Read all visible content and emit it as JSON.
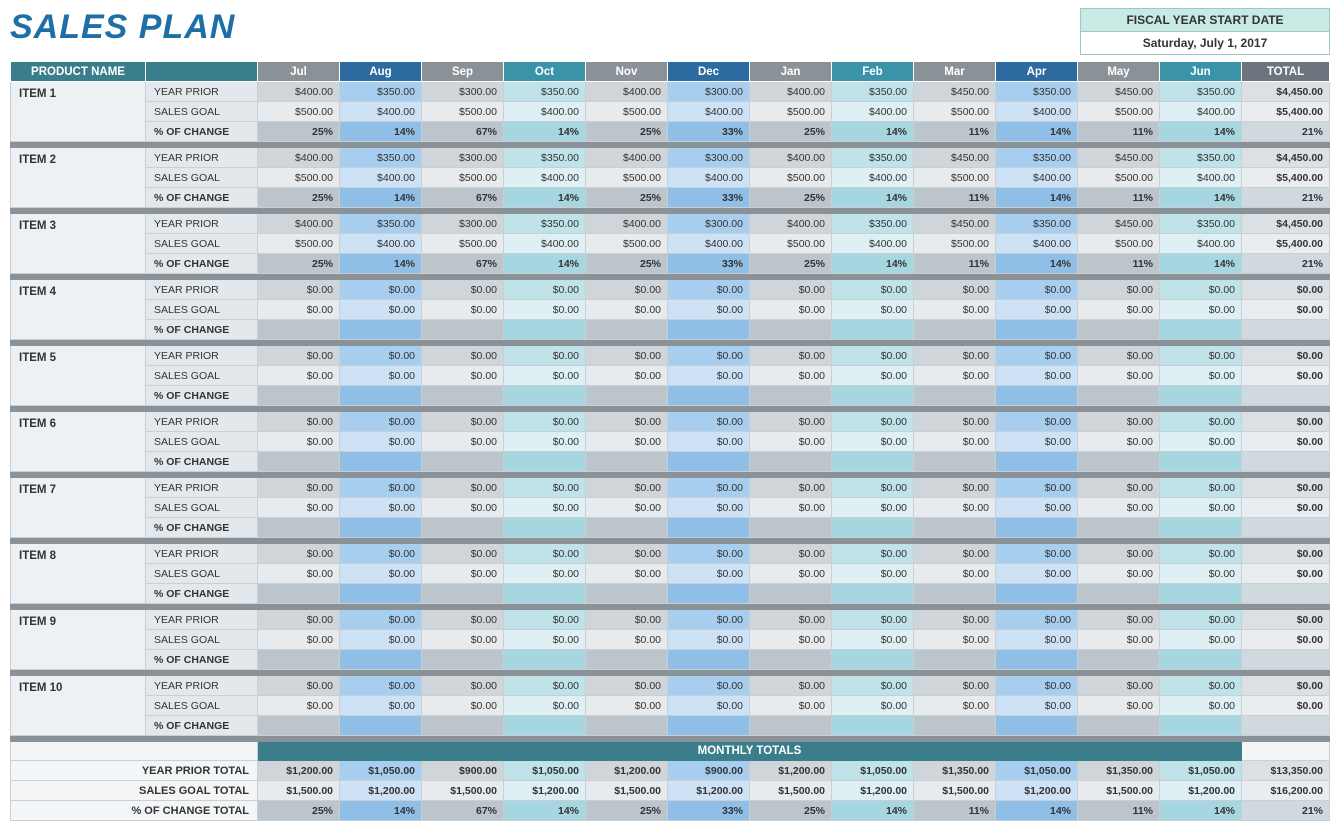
{
  "title": "SALES PLAN",
  "fy": {
    "label": "FISCAL YEAR START DATE",
    "date": "Saturday, July 1, 2017"
  },
  "colors": {
    "prod_header": "#3a7e8c",
    "total_header": "#6c757d",
    "sep_row": "#8a9197",
    "months": [
      {
        "name": "Jul",
        "hdr": "#8a9197",
        "prior": "#d0d5da",
        "goal": "#e7ebee",
        "chg": "#bcc5cb"
      },
      {
        "name": "Aug",
        "hdr": "#2c6aa0",
        "prior": "#a7cdef",
        "goal": "#cde2f5",
        "chg": "#8fbfe6"
      },
      {
        "name": "Sep",
        "hdr": "#8a9197",
        "prior": "#d0d5da",
        "goal": "#e7ebee",
        "chg": "#bcc5cb"
      },
      {
        "name": "Oct",
        "hdr": "#3a93a6",
        "prior": "#c0e3ea",
        "goal": "#def0f3",
        "chg": "#a6d7e0"
      },
      {
        "name": "Nov",
        "hdr": "#8a9197",
        "prior": "#d0d5da",
        "goal": "#e7ebee",
        "chg": "#bcc5cb"
      },
      {
        "name": "Dec",
        "hdr": "#2c6aa0",
        "prior": "#a7cdef",
        "goal": "#cde2f5",
        "chg": "#8fbfe6"
      },
      {
        "name": "Jan",
        "hdr": "#8a9197",
        "prior": "#d0d5da",
        "goal": "#e7ebee",
        "chg": "#bcc5cb"
      },
      {
        "name": "Feb",
        "hdr": "#3a93a6",
        "prior": "#c0e3ea",
        "goal": "#def0f3",
        "chg": "#a6d7e0"
      },
      {
        "name": "Mar",
        "hdr": "#8a9197",
        "prior": "#d0d5da",
        "goal": "#e7ebee",
        "chg": "#bcc5cb"
      },
      {
        "name": "Apr",
        "hdr": "#2c6aa0",
        "prior": "#a7cdef",
        "goal": "#cde2f5",
        "chg": "#8fbfe6"
      },
      {
        "name": "May",
        "hdr": "#8a9197",
        "prior": "#d0d5da",
        "goal": "#e7ebee",
        "chg": "#bcc5cb"
      },
      {
        "name": "Jun",
        "hdr": "#3a93a6",
        "prior": "#c0e3ea",
        "goal": "#def0f3",
        "chg": "#a6d7e0"
      }
    ]
  },
  "headers": {
    "product": "PRODUCT NAME",
    "total": "TOTAL"
  },
  "metric_labels": {
    "prior": "YEAR PRIOR",
    "goal": "SALES GOAL",
    "change": "% OF CHANGE"
  },
  "items": [
    {
      "name": "ITEM 1",
      "prior": [
        "$400.00",
        "$350.00",
        "$300.00",
        "$350.00",
        "$400.00",
        "$300.00",
        "$400.00",
        "$350.00",
        "$450.00",
        "$350.00",
        "$450.00",
        "$350.00"
      ],
      "prior_total": "$4,450.00",
      "goal": [
        "$500.00",
        "$400.00",
        "$500.00",
        "$400.00",
        "$500.00",
        "$400.00",
        "$500.00",
        "$400.00",
        "$500.00",
        "$400.00",
        "$500.00",
        "$400.00"
      ],
      "goal_total": "$5,400.00",
      "change": [
        "25%",
        "14%",
        "67%",
        "14%",
        "25%",
        "33%",
        "25%",
        "14%",
        "11%",
        "14%",
        "11%",
        "14%"
      ],
      "change_total": "21%"
    },
    {
      "name": "ITEM 2",
      "prior": [
        "$400.00",
        "$350.00",
        "$300.00",
        "$350.00",
        "$400.00",
        "$300.00",
        "$400.00",
        "$350.00",
        "$450.00",
        "$350.00",
        "$450.00",
        "$350.00"
      ],
      "prior_total": "$4,450.00",
      "goal": [
        "$500.00",
        "$400.00",
        "$500.00",
        "$400.00",
        "$500.00",
        "$400.00",
        "$500.00",
        "$400.00",
        "$500.00",
        "$400.00",
        "$500.00",
        "$400.00"
      ],
      "goal_total": "$5,400.00",
      "change": [
        "25%",
        "14%",
        "67%",
        "14%",
        "25%",
        "33%",
        "25%",
        "14%",
        "11%",
        "14%",
        "11%",
        "14%"
      ],
      "change_total": "21%"
    },
    {
      "name": "ITEM 3",
      "prior": [
        "$400.00",
        "$350.00",
        "$300.00",
        "$350.00",
        "$400.00",
        "$300.00",
        "$400.00",
        "$350.00",
        "$450.00",
        "$350.00",
        "$450.00",
        "$350.00"
      ],
      "prior_total": "$4,450.00",
      "goal": [
        "$500.00",
        "$400.00",
        "$500.00",
        "$400.00",
        "$500.00",
        "$400.00",
        "$500.00",
        "$400.00",
        "$500.00",
        "$400.00",
        "$500.00",
        "$400.00"
      ],
      "goal_total": "$5,400.00",
      "change": [
        "25%",
        "14%",
        "67%",
        "14%",
        "25%",
        "33%",
        "25%",
        "14%",
        "11%",
        "14%",
        "11%",
        "14%"
      ],
      "change_total": "21%"
    },
    {
      "name": "ITEM 4",
      "prior": [
        "$0.00",
        "$0.00",
        "$0.00",
        "$0.00",
        "$0.00",
        "$0.00",
        "$0.00",
        "$0.00",
        "$0.00",
        "$0.00",
        "$0.00",
        "$0.00"
      ],
      "prior_total": "$0.00",
      "goal": [
        "$0.00",
        "$0.00",
        "$0.00",
        "$0.00",
        "$0.00",
        "$0.00",
        "$0.00",
        "$0.00",
        "$0.00",
        "$0.00",
        "$0.00",
        "$0.00"
      ],
      "goal_total": "$0.00",
      "change": [
        "",
        "",
        "",
        "",
        "",
        "",
        "",
        "",
        "",
        "",
        "",
        ""
      ],
      "change_total": ""
    },
    {
      "name": "ITEM 5",
      "prior": [
        "$0.00",
        "$0.00",
        "$0.00",
        "$0.00",
        "$0.00",
        "$0.00",
        "$0.00",
        "$0.00",
        "$0.00",
        "$0.00",
        "$0.00",
        "$0.00"
      ],
      "prior_total": "$0.00",
      "goal": [
        "$0.00",
        "$0.00",
        "$0.00",
        "$0.00",
        "$0.00",
        "$0.00",
        "$0.00",
        "$0.00",
        "$0.00",
        "$0.00",
        "$0.00",
        "$0.00"
      ],
      "goal_total": "$0.00",
      "change": [
        "",
        "",
        "",
        "",
        "",
        "",
        "",
        "",
        "",
        "",
        "",
        ""
      ],
      "change_total": ""
    },
    {
      "name": "ITEM 6",
      "prior": [
        "$0.00",
        "$0.00",
        "$0.00",
        "$0.00",
        "$0.00",
        "$0.00",
        "$0.00",
        "$0.00",
        "$0.00",
        "$0.00",
        "$0.00",
        "$0.00"
      ],
      "prior_total": "$0.00",
      "goal": [
        "$0.00",
        "$0.00",
        "$0.00",
        "$0.00",
        "$0.00",
        "$0.00",
        "$0.00",
        "$0.00",
        "$0.00",
        "$0.00",
        "$0.00",
        "$0.00"
      ],
      "goal_total": "$0.00",
      "change": [
        "",
        "",
        "",
        "",
        "",
        "",
        "",
        "",
        "",
        "",
        "",
        ""
      ],
      "change_total": ""
    },
    {
      "name": "ITEM 7",
      "prior": [
        "$0.00",
        "$0.00",
        "$0.00",
        "$0.00",
        "$0.00",
        "$0.00",
        "$0.00",
        "$0.00",
        "$0.00",
        "$0.00",
        "$0.00",
        "$0.00"
      ],
      "prior_total": "$0.00",
      "goal": [
        "$0.00",
        "$0.00",
        "$0.00",
        "$0.00",
        "$0.00",
        "$0.00",
        "$0.00",
        "$0.00",
        "$0.00",
        "$0.00",
        "$0.00",
        "$0.00"
      ],
      "goal_total": "$0.00",
      "change": [
        "",
        "",
        "",
        "",
        "",
        "",
        "",
        "",
        "",
        "",
        "",
        ""
      ],
      "change_total": ""
    },
    {
      "name": "ITEM 8",
      "prior": [
        "$0.00",
        "$0.00",
        "$0.00",
        "$0.00",
        "$0.00",
        "$0.00",
        "$0.00",
        "$0.00",
        "$0.00",
        "$0.00",
        "$0.00",
        "$0.00"
      ],
      "prior_total": "$0.00",
      "goal": [
        "$0.00",
        "$0.00",
        "$0.00",
        "$0.00",
        "$0.00",
        "$0.00",
        "$0.00",
        "$0.00",
        "$0.00",
        "$0.00",
        "$0.00",
        "$0.00"
      ],
      "goal_total": "$0.00",
      "change": [
        "",
        "",
        "",
        "",
        "",
        "",
        "",
        "",
        "",
        "",
        "",
        ""
      ],
      "change_total": ""
    },
    {
      "name": "ITEM 9",
      "prior": [
        "$0.00",
        "$0.00",
        "$0.00",
        "$0.00",
        "$0.00",
        "$0.00",
        "$0.00",
        "$0.00",
        "$0.00",
        "$0.00",
        "$0.00",
        "$0.00"
      ],
      "prior_total": "$0.00",
      "goal": [
        "$0.00",
        "$0.00",
        "$0.00",
        "$0.00",
        "$0.00",
        "$0.00",
        "$0.00",
        "$0.00",
        "$0.00",
        "$0.00",
        "$0.00",
        "$0.00"
      ],
      "goal_total": "$0.00",
      "change": [
        "",
        "",
        "",
        "",
        "",
        "",
        "",
        "",
        "",
        "",
        "",
        ""
      ],
      "change_total": ""
    },
    {
      "name": "ITEM 10",
      "prior": [
        "$0.00",
        "$0.00",
        "$0.00",
        "$0.00",
        "$0.00",
        "$0.00",
        "$0.00",
        "$0.00",
        "$0.00",
        "$0.00",
        "$0.00",
        "$0.00"
      ],
      "prior_total": "$0.00",
      "goal": [
        "$0.00",
        "$0.00",
        "$0.00",
        "$0.00",
        "$0.00",
        "$0.00",
        "$0.00",
        "$0.00",
        "$0.00",
        "$0.00",
        "$0.00",
        "$0.00"
      ],
      "goal_total": "$0.00",
      "change": [
        "",
        "",
        "",
        "",
        "",
        "",
        "",
        "",
        "",
        "",
        "",
        ""
      ],
      "change_total": ""
    }
  ],
  "monthly_totals_label": "MONTHLY TOTALS",
  "totals": {
    "prior_label": "YEAR PRIOR TOTAL",
    "goal_label": "SALES GOAL TOTAL",
    "change_label": "% OF CHANGE TOTAL",
    "prior": [
      "$1,200.00",
      "$1,050.00",
      "$900.00",
      "$1,050.00",
      "$1,200.00",
      "$900.00",
      "$1,200.00",
      "$1,050.00",
      "$1,350.00",
      "$1,050.00",
      "$1,350.00",
      "$1,050.00"
    ],
    "prior_total": "$13,350.00",
    "goal": [
      "$1,500.00",
      "$1,200.00",
      "$1,500.00",
      "$1,200.00",
      "$1,500.00",
      "$1,200.00",
      "$1,500.00",
      "$1,200.00",
      "$1,500.00",
      "$1,200.00",
      "$1,500.00",
      "$1,200.00"
    ],
    "goal_total": "$16,200.00",
    "change": [
      "25%",
      "14%",
      "67%",
      "14%",
      "25%",
      "33%",
      "25%",
      "14%",
      "11%",
      "14%",
      "11%",
      "14%"
    ],
    "change_total": "21%"
  }
}
